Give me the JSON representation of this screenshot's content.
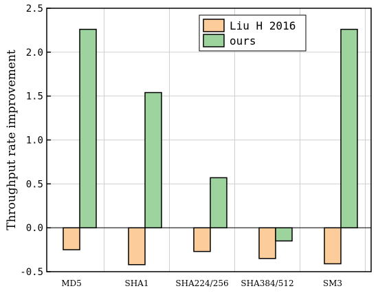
{
  "chart_data": {
    "type": "bar",
    "categories": [
      "MD5",
      "SHA1",
      "SHA224/256",
      "SHA384/512",
      "SM3"
    ],
    "series": [
      {
        "name": "Liu H 2016",
        "values": [
          -0.25,
          -0.42,
          -0.27,
          -0.35,
          -0.41
        ],
        "color": "#fccc9a"
      },
      {
        "name": "ours",
        "values": [
          2.26,
          1.54,
          0.57,
          -0.15,
          2.26
        ],
        "color": "#9dd39d"
      }
    ],
    "title": "",
    "xlabel": "",
    "ylabel": "Throughput rate improvement",
    "ylim": [
      -0.5,
      2.5
    ],
    "yticks": [
      -0.5,
      0.0,
      0.5,
      1.0,
      1.5,
      2.0,
      2.5
    ],
    "ytick_labels": [
      "-0.5",
      "0.0",
      "0.5",
      "1.0",
      "1.5",
      "2.0",
      "2.5"
    ],
    "grid": true,
    "legend_position": "top-right"
  }
}
